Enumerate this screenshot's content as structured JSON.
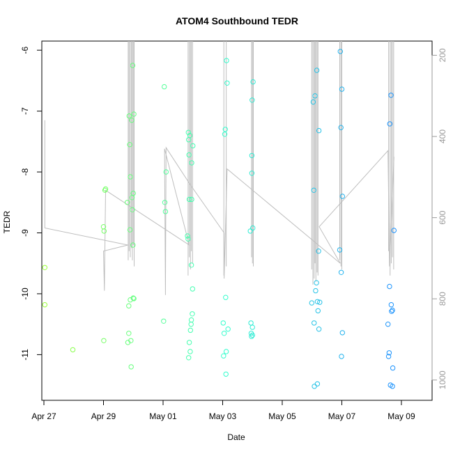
{
  "chart_data": {
    "type": "scatter",
    "title": "ATOM4 Southbound TEDR",
    "xlabel": "Date",
    "ylabel": "TEDR",
    "x_ticks": [
      {
        "day": 0,
        "label": "Apr 27"
      },
      {
        "day": 2,
        "label": "Apr 29"
      },
      {
        "day": 4,
        "label": "May 01"
      },
      {
        "day": 6,
        "label": "May 03"
      },
      {
        "day": 8,
        "label": "May 05"
      },
      {
        "day": 10,
        "label": "May 07"
      },
      {
        "day": 12,
        "label": "May 09"
      }
    ],
    "xlim": [
      -0.07,
      13.03
    ],
    "ylim": [
      -11.75,
      -5.85
    ],
    "y_ticks": [
      -6,
      -7,
      -8,
      -9,
      -10,
      -11
    ],
    "right_axis": {
      "ticks": [
        200,
        400,
        600,
        800,
        1000
      ],
      "lim": [
        165,
        1050
      ]
    },
    "grid": false,
    "series": [
      {
        "points": [
          [
            0.03,
            -9.57
          ],
          [
            0.03,
            -10.18
          ],
          [
            0.97,
            -10.92
          ],
          [
            2.01,
            -10.77
          ],
          [
            2.0,
            -8.9
          ],
          [
            2.02,
            -8.97
          ],
          [
            2.05,
            -8.3
          ],
          [
            2.07,
            -8.28
          ],
          [
            2.8,
            -8.5
          ],
          [
            2.85,
            -10.2
          ],
          [
            2.85,
            -10.65
          ],
          [
            2.82,
            -10.8
          ],
          [
            2.86,
            -7.08
          ],
          [
            2.88,
            -7.55
          ],
          [
            2.9,
            -8.08
          ],
          [
            2.89,
            -8.95
          ],
          [
            2.9,
            -10.1
          ],
          [
            2.92,
            -10.77
          ],
          [
            2.93,
            -11.2
          ],
          [
            2.95,
            -7.15
          ],
          [
            2.96,
            -8.42
          ],
          [
            2.97,
            -8.62
          ],
          [
            2.98,
            -6.25
          ],
          [
            2.99,
            -9.2
          ],
          [
            3.0,
            -8.35
          ],
          [
            3.02,
            -7.05
          ],
          [
            3.0,
            -10.07
          ],
          [
            3.02,
            -10.08
          ],
          [
            4.02,
            -10.45
          ],
          [
            4.04,
            -6.6
          ],
          [
            4.06,
            -8.5
          ],
          [
            4.08,
            -8.65
          ],
          [
            4.1,
            -8.0
          ],
          [
            4.82,
            -9.05
          ],
          [
            4.84,
            -9.1
          ],
          [
            4.85,
            -7.35
          ],
          [
            4.86,
            -7.47
          ],
          [
            4.87,
            -7.72
          ],
          [
            4.88,
            -8.45
          ],
          [
            4.88,
            -10.8
          ],
          [
            4.86,
            -11.05
          ],
          [
            4.9,
            -7.4
          ],
          [
            4.91,
            -10.95
          ],
          [
            4.92,
            -10.6
          ],
          [
            4.94,
            -10.5
          ],
          [
            4.95,
            -10.43
          ],
          [
            4.95,
            -9.53
          ],
          [
            4.96,
            -8.45
          ],
          [
            4.96,
            -7.85
          ],
          [
            4.98,
            -10.33
          ],
          [
            4.99,
            -9.92
          ],
          [
            5.0,
            -7.57
          ],
          [
            6.02,
            -10.48
          ],
          [
            6.03,
            -11.02
          ],
          [
            6.05,
            -10.65
          ],
          [
            6.07,
            -7.38
          ],
          [
            6.09,
            -7.3
          ],
          [
            6.1,
            -10.06
          ],
          [
            6.12,
            -10.95
          ],
          [
            6.11,
            -11.32
          ],
          [
            6.13,
            -6.17
          ],
          [
            6.15,
            -6.54
          ],
          [
            6.18,
            -10.58
          ],
          [
            6.93,
            -8.97
          ],
          [
            6.95,
            -10.48
          ],
          [
            6.96,
            -10.65
          ],
          [
            6.97,
            -10.7
          ],
          [
            6.98,
            -8.02
          ],
          [
            6.98,
            -7.73
          ],
          [
            6.99,
            -6.82
          ],
          [
            7.0,
            -10.55
          ],
          [
            7.01,
            -8.92
          ],
          [
            7.02,
            -6.52
          ],
          [
            7.0,
            -10.68
          ]
        ]
      },
      {
        "points": [
          [
            8.99,
            -10.15
          ],
          [
            9.04,
            -6.85
          ],
          [
            9.06,
            -8.3
          ],
          [
            9.07,
            -10.48
          ],
          [
            9.08,
            -11.52
          ],
          [
            9.1,
            -6.75
          ],
          [
            9.12,
            -9.95
          ],
          [
            9.15,
            -9.82
          ],
          [
            9.16,
            -6.33
          ],
          [
            9.18,
            -11.48
          ],
          [
            9.18,
            -10.13
          ],
          [
            9.2,
            -10.28
          ],
          [
            9.22,
            -9.3
          ],
          [
            9.23,
            -7.32
          ],
          [
            9.23,
            -10.58
          ],
          [
            9.26,
            -10.14
          ],
          [
            9.93,
            -9.28
          ],
          [
            9.95,
            -6.02
          ],
          [
            9.97,
            -7.27
          ],
          [
            9.98,
            -9.65
          ],
          [
            10.0,
            -6.64
          ],
          [
            9.99,
            -11.03
          ],
          [
            10.02,
            -8.4
          ],
          [
            10.02,
            -10.64
          ]
        ]
      },
      {
        "points": [
          [
            11.55,
            -10.5
          ],
          [
            11.57,
            -11.03
          ],
          [
            11.59,
            -10.97
          ],
          [
            11.6,
            -9.88
          ],
          [
            11.61,
            -7.21
          ],
          [
            11.63,
            -11.5
          ],
          [
            11.65,
            -6.74
          ],
          [
            11.66,
            -10.18
          ],
          [
            11.67,
            -10.29
          ],
          [
            11.7,
            -10.27
          ],
          [
            11.7,
            -11.52
          ],
          [
            11.71,
            -11.22
          ],
          [
            11.75,
            -8.96
          ]
        ]
      }
    ],
    "gray_trace": {
      "color": "#bebebe",
      "points": [
        [
          0.03,
          -7.15
        ],
        [
          0.03,
          -8.92
        ],
        [
          2.82,
          -9.2
        ],
        [
          2.0,
          -9.3
        ],
        [
          2.03,
          -9.95
        ],
        [
          2.07,
          -8.3
        ],
        [
          4.88,
          -9.2
        ],
        [
          4.05,
          -7.62
        ],
        [
          4.08,
          -10.02
        ],
        [
          4.1,
          -7.6
        ],
        [
          4.9,
          -8.2
        ],
        [
          6.05,
          -9.0
        ],
        [
          6.05,
          -9.75
        ],
        [
          6.15,
          -7.95
        ],
        [
          9.95,
          -9.5
        ],
        [
          9.24,
          -8.9
        ],
        [
          11.55,
          -7.65
        ],
        [
          11.6,
          -9.55
        ],
        [
          11.75,
          -7.75
        ]
      ],
      "spikes": [
        {
          "x": 2.83,
          "y_bottom": -9.45
        },
        {
          "x": 2.86,
          "y_bottom": -9.3
        },
        {
          "x": 2.9,
          "y_bottom": -9.4
        },
        {
          "x": 2.94,
          "y_bottom": -9.25
        },
        {
          "x": 2.97,
          "y_bottom": -9.45
        },
        {
          "x": 3.0,
          "y_bottom": -9.2
        },
        {
          "x": 3.03,
          "y_bottom": -9.55
        },
        {
          "x": 4.84,
          "y_bottom": -9.7
        },
        {
          "x": 4.88,
          "y_bottom": -9.4
        },
        {
          "x": 4.92,
          "y_bottom": -9.6
        },
        {
          "x": 4.95,
          "y_bottom": -9.3
        },
        {
          "x": 4.99,
          "y_bottom": -9.5
        },
        {
          "x": 6.04,
          "y_bottom": -9.7
        },
        {
          "x": 6.12,
          "y_bottom": -9.55
        },
        {
          "x": 6.97,
          "y_bottom": -9.4
        },
        {
          "x": 7.0,
          "y_bottom": -9.5
        },
        {
          "x": 7.03,
          "y_bottom": -9.55
        },
        {
          "x": 8.99,
          "y_bottom": -9.6
        },
        {
          "x": 9.03,
          "y_bottom": -9.85
        },
        {
          "x": 9.07,
          "y_bottom": -9.75
        },
        {
          "x": 9.1,
          "y_bottom": -9.5
        },
        {
          "x": 9.13,
          "y_bottom": -9.8
        },
        {
          "x": 9.17,
          "y_bottom": -9.65
        },
        {
          "x": 9.2,
          "y_bottom": -9.7
        },
        {
          "x": 9.93,
          "y_bottom": -9.45
        },
        {
          "x": 9.97,
          "y_bottom": -9.55
        },
        {
          "x": 10.0,
          "y_bottom": -9.6
        },
        {
          "x": 11.57,
          "y_bottom": -9.3
        },
        {
          "x": 11.62,
          "y_bottom": -9.7
        },
        {
          "x": 11.66,
          "y_bottom": -9.5
        },
        {
          "x": 11.7,
          "y_bottom": -9.4
        },
        {
          "x": 11.74,
          "y_bottom": -9.6
        }
      ]
    },
    "marker": "open-circle",
    "color_scale": {
      "from": "#99ff33",
      "mid": "#33ffcc",
      "to": "#1a8cff"
    }
  }
}
